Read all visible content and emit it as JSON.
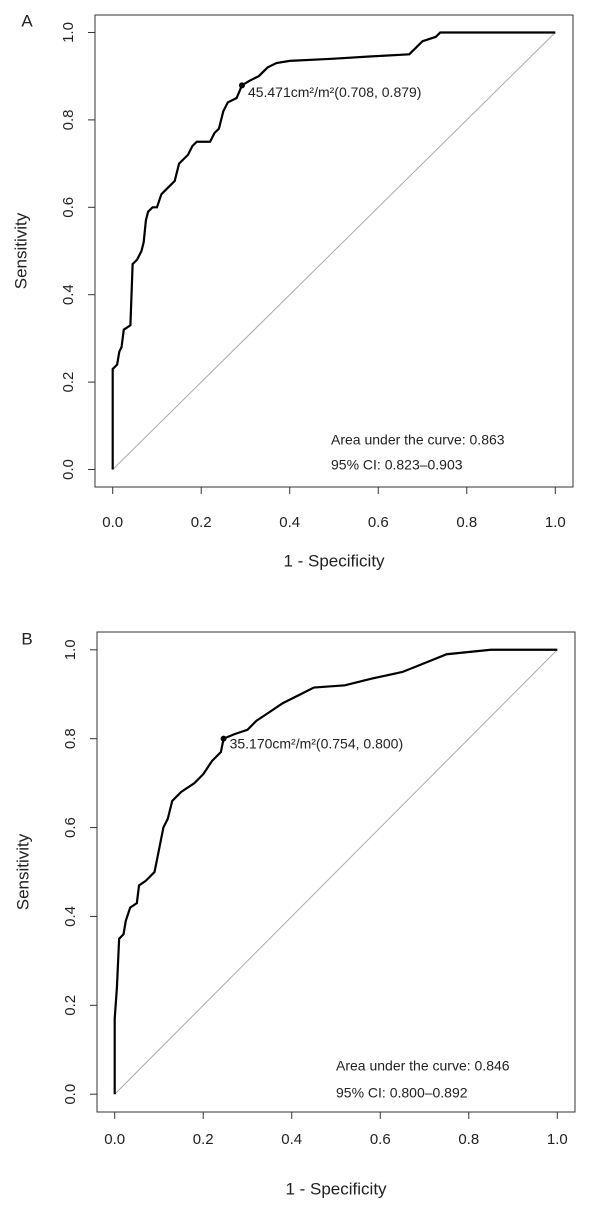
{
  "chart_data": [
    {
      "type": "line",
      "panel_label": "A",
      "xlabel": "1 - Specificity",
      "ylabel": "Sensitivity",
      "xlim": [
        -0.04,
        1.04
      ],
      "ylim": [
        -0.04,
        1.04
      ],
      "xticks": [
        {
          "value": 0,
          "label": "0.0"
        },
        0.2,
        0.4,
        0.6,
        0.8,
        {
          "value": 1,
          "label": "1.0"
        }
      ],
      "yticks": [
        {
          "value": 0,
          "label": "0.0"
        },
        0.2,
        0.4,
        0.6,
        0.8,
        {
          "value": 1,
          "label": "1.0"
        }
      ],
      "x": [
        0,
        0,
        0.01,
        0.015,
        0.02,
        0.025,
        0.04,
        0.045,
        0.055,
        0.065,
        0.07,
        0.075,
        0.08,
        0.09,
        0.1,
        0.11,
        0.12,
        0.13,
        0.14,
        0.15,
        0.16,
        0.17,
        0.18,
        0.19,
        0.22,
        0.23,
        0.24,
        0.25,
        0.26,
        0.28,
        0.292,
        0.31,
        0.33,
        0.35,
        0.37,
        0.4,
        0.5,
        0.58,
        0.67,
        0.68,
        0.7,
        0.73,
        0.74,
        1
      ],
      "series": [
        {
          "name": "ROC",
          "color": "#000000",
          "values": [
            0,
            0.23,
            0.24,
            0.27,
            0.28,
            0.32,
            0.33,
            0.47,
            0.48,
            0.5,
            0.52,
            0.57,
            0.59,
            0.6,
            0.6,
            0.63,
            0.64,
            0.65,
            0.66,
            0.7,
            0.71,
            0.72,
            0.74,
            0.75,
            0.75,
            0.77,
            0.78,
            0.82,
            0.84,
            0.85,
            0.879,
            0.89,
            0.9,
            0.92,
            0.93,
            0.935,
            0.94,
            0.945,
            0.95,
            0.96,
            0.98,
            0.99,
            1,
            1
          ]
        }
      ],
      "cutoff": {
        "x": 0.292,
        "y": 0.879,
        "label": "45.471cm²/m²(0.708, 0.879)"
      },
      "annotations": [
        "Area under the curve: 0.863",
        "95% CI: 0.823–0.903"
      ]
    },
    {
      "type": "line",
      "panel_label": "B",
      "xlabel": "1 - Specificity",
      "ylabel": "Sensitivity",
      "xlim": [
        -0.04,
        1.04
      ],
      "ylim": [
        -0.04,
        1.04
      ],
      "xticks": [
        {
          "value": 0,
          "label": "0.0"
        },
        0.2,
        0.4,
        0.6,
        0.8,
        {
          "value": 1,
          "label": "1.0"
        }
      ],
      "yticks": [
        {
          "value": 0,
          "label": "0.0"
        },
        0.2,
        0.4,
        0.6,
        0.8,
        {
          "value": 1,
          "label": "1.0"
        }
      ],
      "x": [
        0,
        0,
        0.005,
        0.01,
        0.02,
        0.025,
        0.035,
        0.05,
        0.055,
        0.07,
        0.09,
        0.1,
        0.11,
        0.12,
        0.13,
        0.15,
        0.18,
        0.2,
        0.22,
        0.24,
        0.246,
        0.27,
        0.3,
        0.32,
        0.35,
        0.38,
        0.42,
        0.45,
        0.52,
        0.58,
        0.65,
        0.7,
        0.75,
        0.85,
        1
      ],
      "series": [
        {
          "name": "ROC",
          "color": "#000000",
          "values": [
            0,
            0.17,
            0.24,
            0.35,
            0.36,
            0.39,
            0.42,
            0.43,
            0.47,
            0.48,
            0.5,
            0.55,
            0.6,
            0.62,
            0.66,
            0.68,
            0.7,
            0.72,
            0.75,
            0.77,
            0.8,
            0.81,
            0.82,
            0.84,
            0.86,
            0.88,
            0.9,
            0.915,
            0.92,
            0.935,
            0.95,
            0.97,
            0.99,
            1,
            1
          ]
        }
      ],
      "cutoff": {
        "x": 0.246,
        "y": 0.8,
        "label": "35.170cm²/m²(0.754, 0.800)"
      },
      "annotations": [
        "Area under the curve: 0.846",
        "95% CI: 0.800–0.892"
      ]
    }
  ]
}
